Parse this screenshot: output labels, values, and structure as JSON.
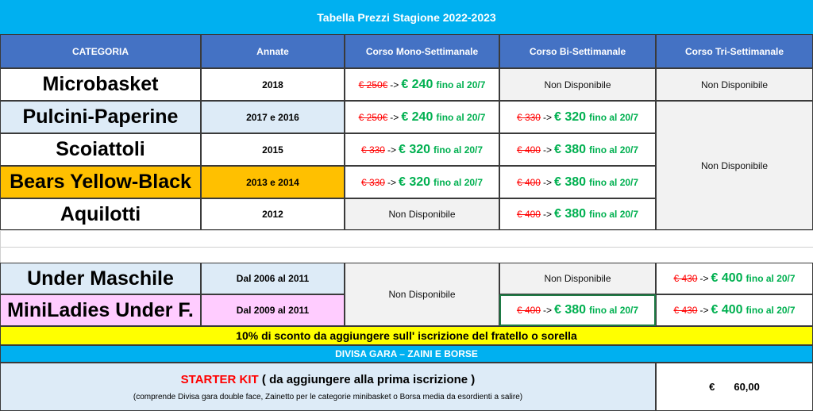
{
  "title": "Tabella Prezzi Stagione 2022-2023",
  "headers": [
    "CATEGORIA",
    "Annate",
    "Corso Mono-Settimanale",
    "Corso Bi-Settimanale",
    "Corso Tri-Settimanale"
  ],
  "na": "Non Disponibile",
  "arrow": "->",
  "fino": "fino al 20/7",
  "rows": [
    {
      "cat": "Microbasket",
      "year": "2018",
      "mono": {
        "old": "€ 250€",
        "new": "€ 240"
      }
    },
    {
      "cat": "Pulcini-Paperine",
      "year": "2017 e 2016",
      "mono": {
        "old": "€ 250€",
        "new": "€ 240"
      },
      "bi": {
        "old": "€ 330",
        "new": "€ 320"
      }
    },
    {
      "cat": "Scoiattoli",
      "year": "2015",
      "mono": {
        "old": "€ 330",
        "new": "€ 320"
      },
      "bi": {
        "old": "€ 400",
        "new": "€ 380"
      }
    },
    {
      "cat": "Bears Yellow-Black",
      "year": "2013 e 2014",
      "mono": {
        "old": "€ 330",
        "new": "€ 320"
      },
      "bi": {
        "old": "€ 400",
        "new": "€ 380"
      }
    },
    {
      "cat": "Aquilotti",
      "year": "2012",
      "bi": {
        "old": "€ 400",
        "new": "€ 380"
      }
    },
    {
      "cat": "Under Maschile",
      "year": "Dal 2006 al 2011",
      "tri": {
        "old": "€ 430",
        "new": "€ 400"
      }
    },
    {
      "cat": "MiniLadies Under F.",
      "year": "Dal 2009 al 2011",
      "bi": {
        "old": "€ 400",
        "new": "€ 380"
      },
      "tri": {
        "old": "€ 430",
        "new": "€ 400"
      }
    }
  ],
  "discount": "10% di sconto da aggiungere sull' iscrizione del fratello o sorella",
  "divisa": "DIVISA GARA – ZAINI E BORSE",
  "kit": {
    "label": "STARTER KIT",
    "note": " ( da aggiungere alla prima iscrizione )",
    "sub": "(comprende Divisa gara double face, Zainetto per le categorie minibasket o Borsa media da esordienti a salire)",
    "currency": "€",
    "amount": "60,00"
  }
}
